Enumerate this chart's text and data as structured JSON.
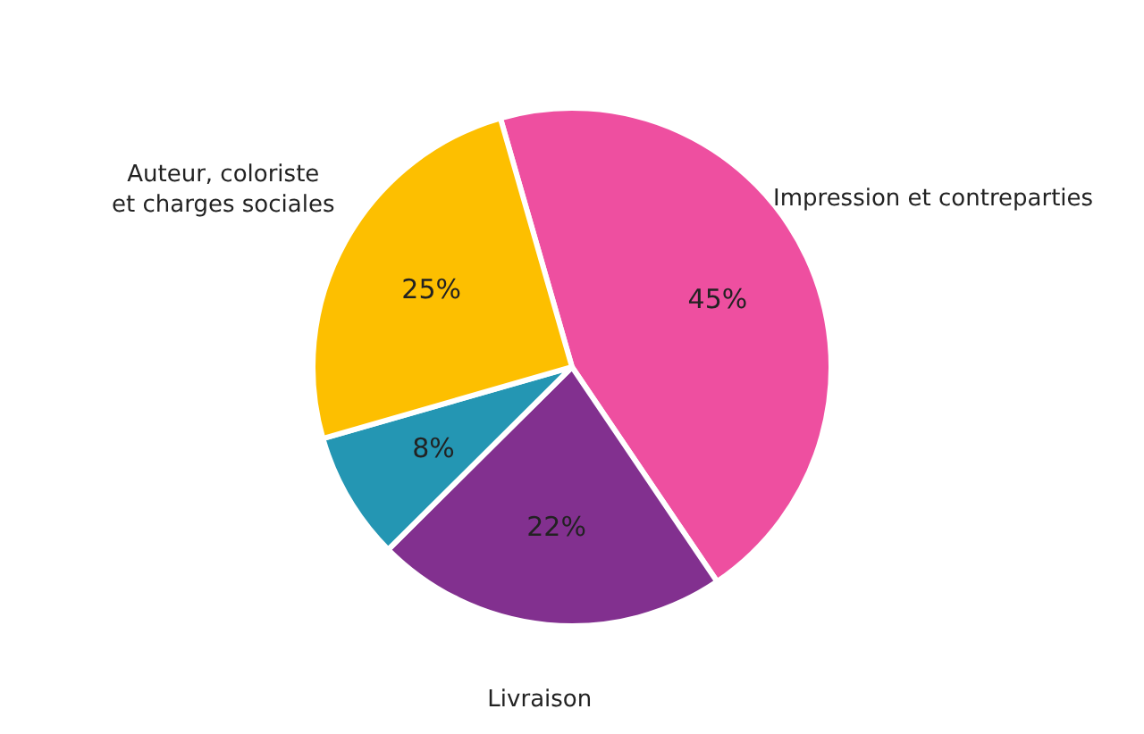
{
  "chart_data": {
    "type": "pie",
    "categories": [
      "Impression et contreparties",
      "Livraison",
      null,
      "Auteur, coloriste et charges sociales"
    ],
    "values": [
      45,
      22,
      8,
      25
    ],
    "value_labels": [
      "45%",
      "22%",
      "8%",
      "25%"
    ],
    "colors": [
      "#ee4fa0",
      "#82308f",
      "#2496b3",
      "#fdbf00"
    ]
  }
}
